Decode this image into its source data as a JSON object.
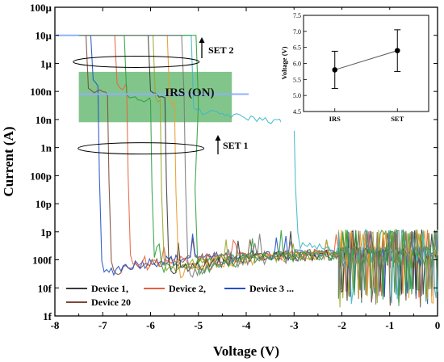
{
  "chart_data": [
    {
      "type": "line",
      "xlabel": "Voltage (V)",
      "ylabel": "Current (A)",
      "xlim": [
        -8,
        0
      ],
      "ylim": [
        1e-15,
        0.0001
      ],
      "yscale": "log",
      "grid": false,
      "legend_position": "bottom-left",
      "x_ticks": [
        {
          "v": -8,
          "label": "-8"
        },
        {
          "v": -7,
          "label": "-7"
        },
        {
          "v": -6,
          "label": "-6"
        },
        {
          "v": -5,
          "label": "-5"
        },
        {
          "v": -4,
          "label": "-4"
        },
        {
          "v": -3,
          "label": "-3"
        },
        {
          "v": -2,
          "label": "-2"
        },
        {
          "v": -1,
          "label": "-1"
        },
        {
          "v": 0,
          "label": "0"
        }
      ],
      "y_ticks": [
        {
          "v": 0.0001,
          "label": "100µ"
        },
        {
          "v": 1e-05,
          "label": "10µ"
        },
        {
          "v": 1e-06,
          "label": "1µ"
        },
        {
          "v": 1e-07,
          "label": "100n"
        },
        {
          "v": 1e-08,
          "label": "10n"
        },
        {
          "v": 1e-09,
          "label": "1n"
        },
        {
          "v": 1e-10,
          "label": "100p"
        },
        {
          "v": 1e-11,
          "label": "10p"
        },
        {
          "v": 1e-12,
          "label": "1p"
        },
        {
          "v": 1e-13,
          "label": "100f"
        },
        {
          "v": 1e-14,
          "label": "10f"
        },
        {
          "v": 1e-15,
          "label": "1f"
        }
      ],
      "legend": [
        {
          "name": "Device 1,",
          "color": "#3a3a3a"
        },
        {
          "name": "Device 2,",
          "color": "#e8603c"
        },
        {
          "name": "Device 3 ...",
          "color": "#2450c8"
        },
        {
          "name": "Device 20",
          "color": "#7a4a3a"
        }
      ],
      "colors": [
        "#3a3a3a",
        "#e8603c",
        "#2450c8",
        "#7a4a3a",
        "#2e9e3e",
        "#9aa626",
        "#3fb7c6",
        "#e89a2a",
        "#7a7a7a"
      ],
      "compliance_current": 1e-05,
      "irs_band": {
        "label": "IRS (ON)",
        "x_range": [
          -7.5,
          -4.3
        ],
        "y_range": [
          8e-09,
          5e-07
        ],
        "color": "#2e9e3e"
      },
      "annotations": [
        {
          "text": "SET 2",
          "x": -4.85,
          "y": 7e-06
        },
        {
          "text": "SET 1",
          "x": -4.8,
          "y": 1.1e-09
        }
      ],
      "series": [
        {
          "color": "#7a4a3a",
          "set_voltage": -7.3,
          "irs_level": 1e-07,
          "pre_level": 3e-14,
          "drop_v": -6.9
        },
        {
          "color": "#2450c8",
          "set_voltage": -7.2,
          "irs_level": 2e-07,
          "pre_level": 3e-14,
          "drop_v": -7.1
        },
        {
          "color": "#e8603c",
          "set_voltage": -6.7,
          "irs_level": 1.5e-07,
          "pre_level": 5e-14,
          "drop_v": -6.5
        },
        {
          "color": "#2e9e3e",
          "set_voltage": -6.5,
          "irs_level": 6e-08,
          "pre_level": 4e-14,
          "drop_v": -6.0
        },
        {
          "color": "#9aa626",
          "set_voltage": -5.9,
          "irs_level": 5e-08,
          "pre_level": 4e-14,
          "drop_v": -5.8
        },
        {
          "color": "#3a3a3a",
          "set_voltage": -6.0,
          "irs_level": 8e-08,
          "pre_level": 3e-14,
          "drop_v": -5.7
        },
        {
          "color": "#e89a2a",
          "set_voltage": -5.6,
          "irs_level": 4e-08,
          "pre_level": 3e-14,
          "drop_v": -5.5
        },
        {
          "color": "#3fb7c6",
          "set_voltage": -5.1,
          "irs_level": 2e-08,
          "pre_level": 3e-13,
          "drop_v": -3.0
        },
        {
          "color": "#2e9e3e",
          "set_voltage": -5.0,
          "irs_level": 3e-08,
          "pre_level": 4e-14,
          "drop_v": -5.1
        },
        {
          "color": "#7a7a7a",
          "set_voltage": -5.3,
          "irs_level": 6e-08,
          "pre_level": 3e-14,
          "drop_v": -5.3
        }
      ]
    },
    {
      "type": "scatter",
      "xlabel": "",
      "ylabel": "Voltage (V)",
      "categories": [
        "IRS",
        "SET"
      ],
      "values": [
        5.8,
        6.4
      ],
      "error": [
        0.58,
        0.65
      ],
      "ylim": [
        4.5,
        7.5
      ],
      "y_ticks": [
        "4.5",
        "5.0",
        "5.5",
        "6.0",
        "6.5",
        "7.0",
        "7.5"
      ],
      "grid": false
    }
  ]
}
